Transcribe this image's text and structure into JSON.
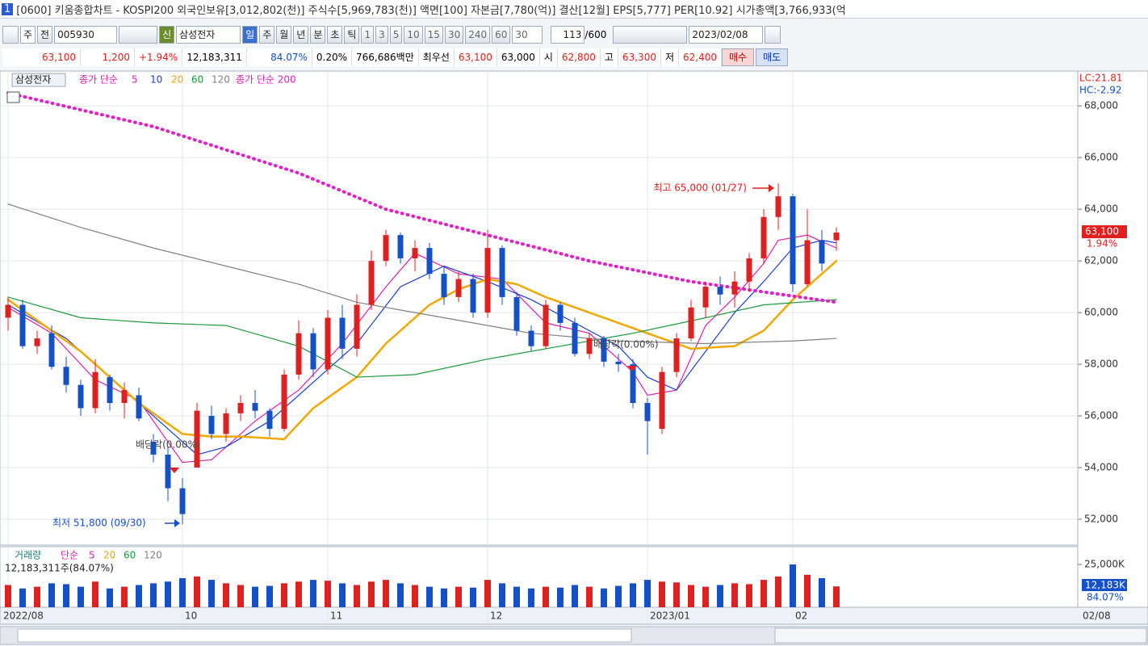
{
  "window": {
    "icon": "1",
    "title": "[0600] 키움종합차트 - KOSPI200 외국인보유[3,012,802(천)] 주식수[5,969,783(천)] 액면[100] 자본금[7,780(억)] 결산[12월] EPS[5,777] PER[10.92] 시가총액[3,766,933(억"
  },
  "toolbar": {
    "period_type": "주",
    "prev": "전",
    "code": "005930",
    "flag": "신",
    "name": "삼성전자",
    "periods": [
      "일",
      "주",
      "월",
      "년",
      "분",
      "초",
      "틱"
    ],
    "minutes": [
      "1",
      "3",
      "5",
      "10",
      "15",
      "30",
      "240",
      "60"
    ],
    "count": "30",
    "view": "113",
    "total": "/600",
    "date": "2023/02/08"
  },
  "quote": {
    "price": "63,100",
    "change": "1,200",
    "change_pct": "+1.94%",
    "volume": "12,183,311",
    "vol_ratio": "84.07%",
    "turnover": "0.20%",
    "amount": "766,686백만",
    "best_label": "최우선",
    "ask": "63,100",
    "bid": "63,000",
    "open_label": "시",
    "open": "62,800",
    "high_label": "고",
    "high": "63,300",
    "low_label": "저",
    "low": "62,400",
    "buy": "매수",
    "sell": "매도"
  },
  "chart_data": {
    "type": "candlestick",
    "stock": "삼성전자",
    "ma_label": "종가 단순",
    "ylim": [
      51000,
      69350
    ],
    "yticks": [
      {
        "value": 52000,
        "label": "52,000"
      },
      {
        "value": 54000,
        "label": "54,000"
      },
      {
        "value": 56000,
        "label": "56,000"
      },
      {
        "value": 58000,
        "label": "58,000"
      },
      {
        "value": 60000,
        "label": "60,000"
      },
      {
        "value": 62000,
        "label": "62,000"
      },
      {
        "value": 64000,
        "label": "64,000"
      },
      {
        "value": 66000,
        "label": "66,000"
      },
      {
        "value": 68000,
        "label": "68,000"
      }
    ],
    "xticks": [
      {
        "value": 0,
        "label": "2022/08"
      },
      {
        "value": 12,
        "label": "10"
      },
      {
        "value": 22,
        "label": "11"
      },
      {
        "value": 33,
        "label": "12"
      },
      {
        "value": 44,
        "label": "2023/01"
      },
      {
        "value": 54,
        "label": "02"
      }
    ],
    "last_date": "02/08",
    "grid": true,
    "up_color": "#e0201f",
    "down_color": "#1450c8",
    "candles": [
      [
        59800,
        60600,
        59300,
        60300
      ],
      [
        60300,
        60500,
        58600,
        58700
      ],
      [
        58700,
        59300,
        58400,
        59000
      ],
      [
        59200,
        59500,
        57800,
        57900
      ],
      [
        57900,
        58300,
        56900,
        57200
      ],
      [
        57200,
        57400,
        56000,
        56300
      ],
      [
        56300,
        58200,
        56100,
        57700
      ],
      [
        57500,
        57600,
        56200,
        56500
      ],
      [
        56500,
        57300,
        55900,
        57000
      ],
      [
        56800,
        57100,
        55800,
        55900
      ],
      [
        55000,
        55300,
        54200,
        54500
      ],
      [
        54500,
        54800,
        52700,
        53200
      ],
      [
        53200,
        53600,
        51800,
        52200
      ],
      [
        54000,
        56500,
        54000,
        56200
      ],
      [
        56000,
        56400,
        55100,
        55300
      ],
      [
        55300,
        56300,
        55000,
        56100
      ],
      [
        56100,
        56800,
        55800,
        56500
      ],
      [
        56500,
        57000,
        55900,
        56200
      ],
      [
        56200,
        56300,
        55200,
        55500
      ],
      [
        55500,
        57800,
        55400,
        57600
      ],
      [
        57600,
        59700,
        57400,
        59200
      ],
      [
        59200,
        59400,
        57500,
        57800
      ],
      [
        57800,
        60100,
        57600,
        59800
      ],
      [
        59800,
        60300,
        58200,
        58600
      ],
      [
        58600,
        60700,
        58300,
        60300
      ],
      [
        60300,
        62400,
        60100,
        62000
      ],
      [
        62000,
        63200,
        61800,
        63000
      ],
      [
        63000,
        63100,
        61900,
        62100
      ],
      [
        62100,
        62800,
        61600,
        62500
      ],
      [
        62500,
        62700,
        61300,
        61500
      ],
      [
        61500,
        61800,
        60300,
        60600
      ],
      [
        60600,
        61600,
        60400,
        61300
      ],
      [
        61300,
        61500,
        59800,
        60000
      ],
      [
        60000,
        63200,
        59800,
        62500
      ],
      [
        62500,
        62600,
        60300,
        60600
      ],
      [
        60600,
        60800,
        59100,
        59300
      ],
      [
        59300,
        59500,
        58500,
        58700
      ],
      [
        58700,
        60500,
        58600,
        60300
      ],
      [
        60300,
        60400,
        59300,
        59600
      ],
      [
        59600,
        59800,
        58300,
        58400
      ],
      [
        58400,
        59200,
        58200,
        59000
      ],
      [
        59000,
        59100,
        57900,
        58100
      ],
      [
        58100,
        58400,
        57700,
        58000
      ],
      [
        58000,
        58200,
        56300,
        56500
      ],
      [
        56500,
        56700,
        54500,
        55800
      ],
      [
        55500,
        57900,
        55300,
        57700
      ],
      [
        57700,
        59200,
        57500,
        59000
      ],
      [
        59000,
        60500,
        58900,
        60200
      ],
      [
        60200,
        61200,
        59800,
        61000
      ],
      [
        61000,
        61400,
        60300,
        60700
      ],
      [
        60700,
        61600,
        60200,
        61200
      ],
      [
        61200,
        62300,
        60800,
        62100
      ],
      [
        62100,
        64000,
        61900,
        63700
      ],
      [
        63700,
        65000,
        63200,
        64500
      ],
      [
        64500,
        64600,
        60800,
        61100
      ],
      [
        61100,
        64000,
        61000,
        62800
      ],
      [
        62800,
        63200,
        61600,
        61900
      ],
      [
        62800,
        63300,
        62400,
        63100
      ]
    ],
    "series": [
      {
        "name": "5",
        "color": "#e020b0",
        "x": [
          0,
          3,
          6,
          9,
          11,
          12,
          14,
          17,
          20,
          23,
          26,
          28,
          31,
          34,
          37,
          40,
          43,
          44,
          46,
          48,
          50,
          52,
          53,
          55,
          57
        ],
        "values": [
          60200,
          59200,
          57400,
          56600,
          55000,
          54200,
          54300,
          55800,
          57000,
          58800,
          61000,
          62300,
          61500,
          61300,
          59600,
          59200,
          57700,
          56800,
          57000,
          59500,
          60600,
          61900,
          62800,
          63000,
          62500
        ]
      },
      {
        "name": "10",
        "color": "#1a3fd0",
        "x": [
          0,
          4,
          8,
          11,
          13,
          15,
          18,
          21,
          24,
          27,
          30,
          33,
          36,
          39,
          42,
          44,
          46,
          48,
          50,
          52,
          54,
          56,
          57
        ],
        "values": [
          60300,
          59000,
          57000,
          55500,
          54500,
          54800,
          55800,
          57300,
          58800,
          61000,
          61800,
          61200,
          60500,
          59600,
          58700,
          57500,
          57000,
          58500,
          60000,
          61200,
          62500,
          62800,
          62700
        ]
      },
      {
        "name": "20",
        "color": "#f0a800",
        "width": 2.5,
        "x": [
          0,
          5,
          9,
          12,
          14,
          16,
          19,
          21,
          24,
          26,
          29,
          31,
          33,
          35,
          37,
          40,
          42,
          44,
          47,
          50,
          52,
          54,
          57
        ],
        "values": [
          60500,
          58500,
          56500,
          55300,
          55200,
          55200,
          55100,
          56300,
          57500,
          58800,
          60300,
          60900,
          61300,
          61100,
          60600,
          60000,
          59600,
          59200,
          58600,
          58700,
          59300,
          60500,
          62000
        ]
      },
      {
        "name": "60",
        "color": "#1a9a3a",
        "x": [
          0,
          5,
          10,
          15,
          20,
          24,
          28,
          33,
          38,
          43,
          48,
          52,
          57
        ],
        "values": [
          60600,
          59800,
          59600,
          59500,
          58700,
          57500,
          57600,
          58200,
          58700,
          59200,
          59800,
          60300,
          60500
        ]
      },
      {
        "name": "120",
        "color": "#808080",
        "x": [
          0,
          5,
          10,
          15,
          20,
          24,
          30,
          36,
          42,
          48,
          54,
          57
        ],
        "values": [
          64200,
          63300,
          62500,
          61800,
          61100,
          60400,
          59800,
          59200,
          58900,
          58800,
          58900,
          59000
        ]
      },
      {
        "name": "종가 단순 200",
        "color": "#e020c8",
        "dotted": true,
        "x": [
          0,
          10,
          20,
          26,
          33,
          40,
          47,
          52,
          57
        ],
        "values": [
          68500,
          67200,
          65400,
          64000,
          63000,
          62000,
          61200,
          60800,
          60400
        ]
      }
    ],
    "annotations": {
      "high": "최고 65,000 (01/27)",
      "low": "최저 51,800 (09/30)",
      "dividend": [
        "배당락(0.00%)",
        "배당락(0.00%)"
      ]
    },
    "side": {
      "lc": "LC:21.81",
      "hc": "HC:-2.92",
      "price": "63,100",
      "pct": "1.94%"
    },
    "volume": {
      "label": "거래량",
      "ma_label": "단순",
      "ma_names": [
        "5",
        "20",
        "60",
        "120"
      ],
      "ma_colors": [
        "#e020b0",
        "#f0a800",
        "#1a9a3a",
        "#808080"
      ],
      "info": "12,183,311주(84.07%)",
      "ylim": [
        0,
        34000
      ],
      "yticks": [
        {
          "value": 25000,
          "label": "25,000K"
        }
      ],
      "last_label": "12,183K",
      "last_pct": "84.07%",
      "values": [
        13000,
        11000,
        12000,
        14000,
        13500,
        12000,
        15000,
        11000,
        12000,
        13000,
        14000,
        15000,
        17000,
        18000,
        16000,
        14000,
        13000,
        12000,
        12500,
        14000,
        15000,
        16000,
        15500,
        14000,
        13000,
        15000,
        16000,
        14000,
        13000,
        12000,
        11000,
        12000,
        11500,
        16000,
        14000,
        12000,
        11000,
        12000,
        11500,
        13000,
        12000,
        11000,
        12500,
        14000,
        16000,
        15000,
        14500,
        13000,
        12000,
        13000,
        14000,
        13500,
        16000,
        18000,
        25000,
        19000,
        17000,
        12183
      ]
    }
  }
}
